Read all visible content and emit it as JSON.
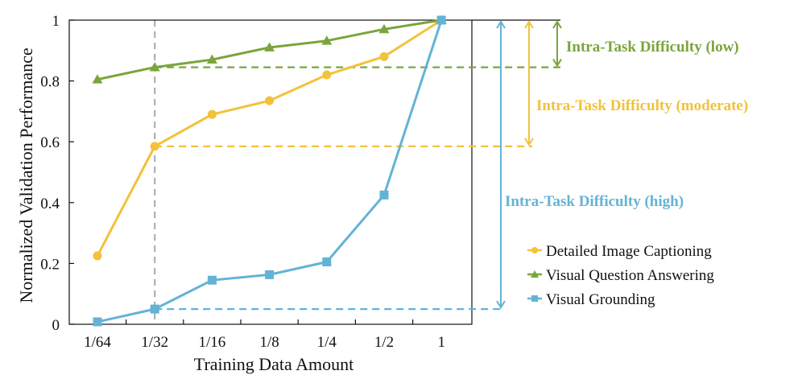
{
  "chart_data": {
    "type": "line",
    "xlabel": "Training Data Amount",
    "ylabel": "Normalized Validation Performance",
    "categories": [
      "1/64",
      "1/32",
      "1/16",
      "1/8",
      "1/4",
      "1/2",
      "1"
    ],
    "ylim": [
      0,
      1
    ],
    "yticks": [
      "0",
      "0.2",
      "0.4",
      "0.6",
      "0.8",
      "1"
    ],
    "grid": false,
    "legend_position": "right",
    "reference_category": "1/32",
    "series": [
      {
        "name": "Detailed Image Captioning",
        "color": "#F3C13A",
        "marker": "circle",
        "values": [
          0.225,
          0.585,
          0.69,
          0.735,
          0.82,
          0.88,
          1.0
        ]
      },
      {
        "name": "Visual Question Answering",
        "color": "#7AA53C",
        "marker": "triangle",
        "values": [
          0.805,
          0.845,
          0.87,
          0.91,
          0.932,
          0.97,
          1.0
        ]
      },
      {
        "name": "Visual Grounding",
        "color": "#63B3D6",
        "marker": "square",
        "values": [
          0.008,
          0.05,
          0.145,
          0.163,
          0.205,
          0.425,
          1.0
        ]
      }
    ],
    "annotations": [
      {
        "text": "Intra-Task Difficulty (low)",
        "series": "Visual Question Answering",
        "color": "#7AA53C"
      },
      {
        "text": "Intra-Task Difficulty (moderate)",
        "series": "Detailed Image Captioning",
        "color": "#F3C13A"
      },
      {
        "text": "Intra-Task Difficulty (high)",
        "series": "Visual Grounding",
        "color": "#63B3D6"
      }
    ]
  }
}
